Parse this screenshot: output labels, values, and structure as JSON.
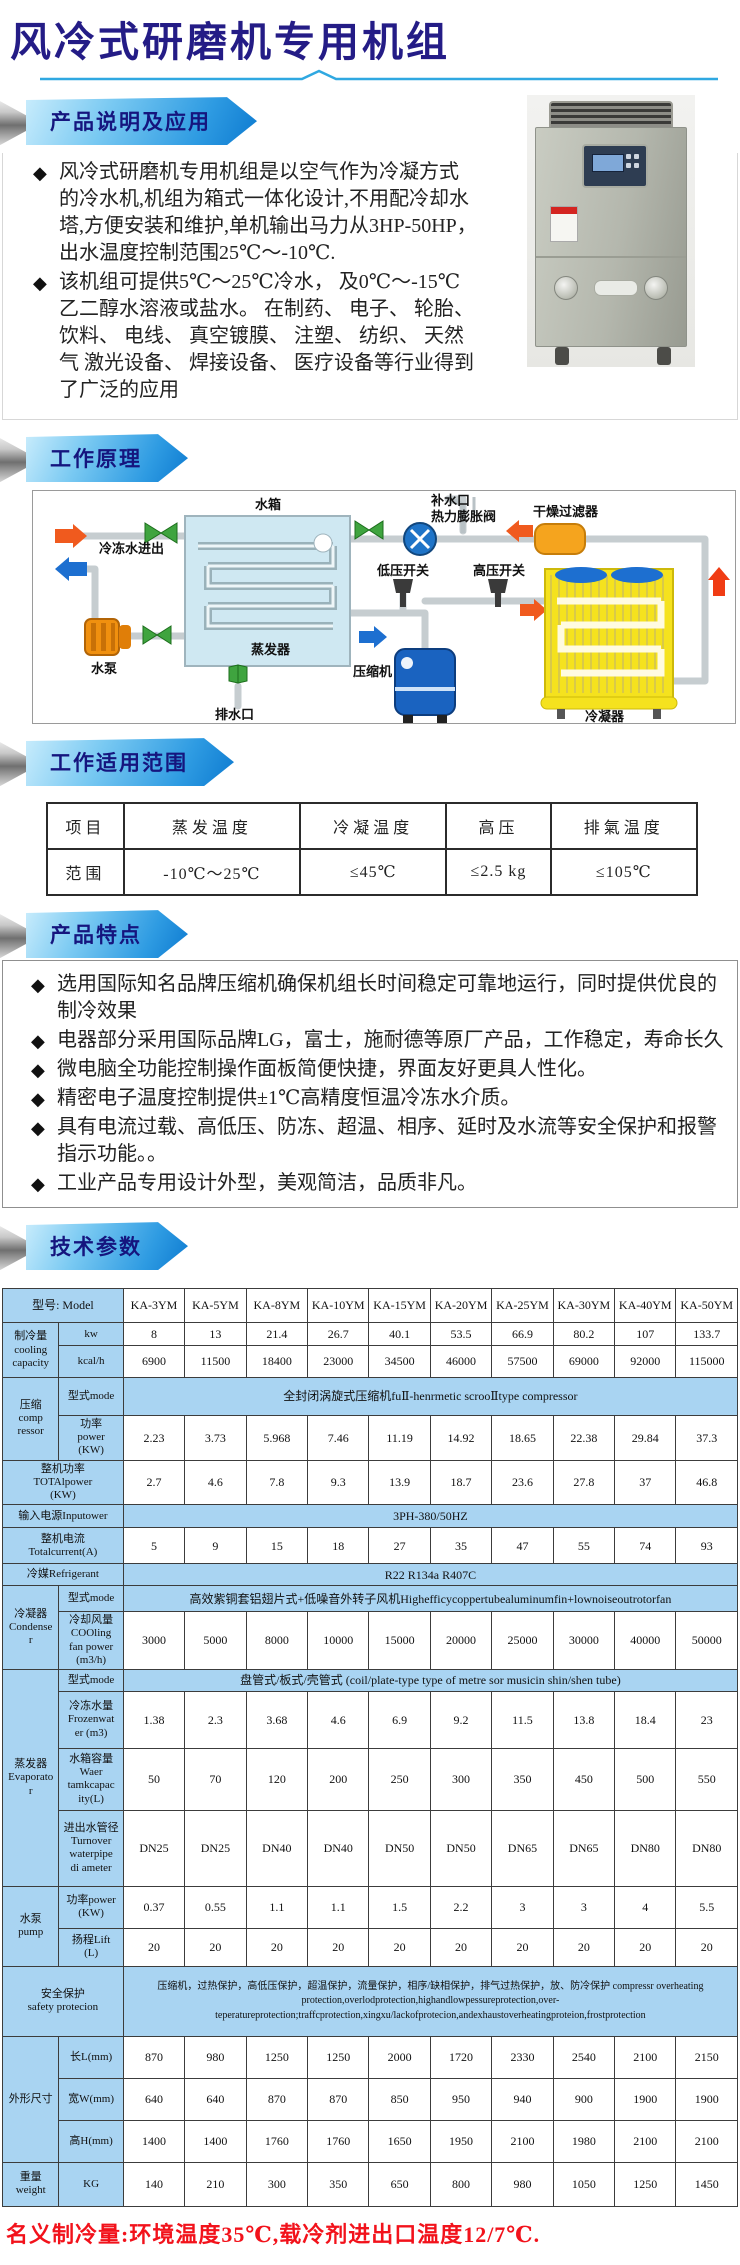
{
  "page": {
    "title": "风冷式研磨机专用机组",
    "footer_note": "名义制冷量:环境温度35℃,载冷剂进出口温度12/7℃."
  },
  "sections": {
    "desc": {
      "banner": "产品说明及应用",
      "bullets": [
        "风冷式研磨机专用机组是以空气作为冷凝方式的冷水机,机组为箱式一体化设计,不用配冷却水塔,方便安装和维护,单机输出马力从3HP-50HP， 出水温度控制范围25℃～-10℃.",
        "该机组可提供5℃～25℃冷水， 及0℃～-15℃乙二醇水溶液或盐水。 在制药、 电子、 轮胎、 饮料、 电线、 真空镀膜、 注塑、 纺织、 天然气 激光设备、 焊接设备、 医疗设备等行业得到了广泛的应用"
      ]
    },
    "principle": {
      "banner": "工作原理",
      "labels": {
        "water_refill": "补水口",
        "tank": "水箱",
        "expansion_valve": "热力膨胀阀",
        "dryer_filter": "干燥过滤器",
        "chilled_water": "冷冻水进出",
        "low_switch": "低压开关",
        "high_switch": "高压开关",
        "evaporator": "蒸发器",
        "compressor": "压缩机",
        "pump": "水泵",
        "drain": "排水口",
        "condenser": "冷凝器"
      }
    },
    "range": {
      "banner": "工作适用范围",
      "headers": [
        "项目",
        "蒸发温度",
        "冷凝温度",
        "高压",
        "排氣温度"
      ],
      "row": [
        "范围",
        "-10℃～25℃",
        "≤45℃",
        "≤2.5 kg",
        "≤105℃"
      ]
    },
    "features": {
      "banner": "产品特点",
      "bullets": [
        "选用国际知名品牌压缩机确保机组长时间稳定可靠地运行，同时提供优良的制冷效果",
        "电器部分采用国际品牌LG，富士，施耐德等原厂产品，工作稳定，寿命长久",
        "微电脑全功能控制操作面板简便快捷，界面友好更具人性化。",
        "精密电子温度控制提供±1℃高精度恒温冷冻水介质。",
        "具有电流过载、高低压、防冻、超温、相序、延时及水流等安全保护和报警指示功能。。",
        "工业产品专用设计外型，美观简洁，品质非凡。"
      ]
    },
    "specs": {
      "banner": "技术参数"
    }
  },
  "spec_table": {
    "model_label": "型号: Model",
    "models": [
      "KA-3YM",
      "KA-5YM",
      "KA-8YM",
      "KA-10YM",
      "KA-15YM",
      "KA-20YM",
      "KA-25YM",
      "KA-30YM",
      "KA-40YM",
      "KA-50YM"
    ],
    "rows": [
      {
        "group": "制冷量\ncooling\ncapacity",
        "rowspan": 2,
        "param": "kw",
        "values": [
          "8",
          "13",
          "21.4",
          "26.7",
          "40.1",
          "53.5",
          "66.9",
          "80.2",
          "107",
          "133.7"
        ]
      },
      {
        "param": "kcal/h",
        "values": [
          "6900",
          "11500",
          "18400",
          "23000",
          "34500",
          "46000",
          "57500",
          "69000",
          "92000",
          "115000"
        ]
      },
      {
        "group": "压缩\ncomp\nressor",
        "rowspan": 2,
        "param": "型式mode",
        "span": "全封闭涡旋式压缩机fuⅡ-henrmetic scrooⅡtype compressor"
      },
      {
        "param": "功率\npower\n(KW)",
        "values": [
          "2.23",
          "3.73",
          "5.968",
          "7.46",
          "11.19",
          "14.92",
          "18.65",
          "22.38",
          "29.84",
          "37.3"
        ]
      },
      {
        "label2": "整机功率\nTOTAlpower\n(KW)",
        "values": [
          "2.7",
          "4.6",
          "7.8",
          "9.3",
          "13.9",
          "18.7",
          "23.6",
          "27.8",
          "37",
          "46.8"
        ]
      },
      {
        "label2": "输入电源Inputower",
        "span": "3PH-380/50HZ"
      },
      {
        "label2": "整机电流\nTotalcurrent(A)",
        "values": [
          "5",
          "9",
          "15",
          "18",
          "27",
          "35",
          "47",
          "55",
          "74",
          "93"
        ]
      },
      {
        "label2": "冷媒Refrigerant",
        "span": "R22 R134a R407C"
      },
      {
        "group": "冷凝器\nCondense\nr",
        "rowspan": 2,
        "param": "型式mode",
        "span": "高效紫铜套铝翅片式+低噪音外转子风机Highefficycoppertubealuminumfin+lownoiseoutrotorfan"
      },
      {
        "param": "冷却风量\nCOOling\nfan power\n(m3/h)",
        "values": [
          "3000",
          "5000",
          "8000",
          "10000",
          "15000",
          "20000",
          "25000",
          "30000",
          "40000",
          "50000"
        ]
      },
      {
        "group": "蒸发器\nEvaporato\nr",
        "rowspan": 4,
        "param": "型式mode",
        "span": "盘管式/板式/壳管式 (coil/plate-type type of metre sor musicin shin/shen tube)"
      },
      {
        "param": "冷冻水量\nFrozenwat\ner (m3)",
        "values": [
          "1.38",
          "2.3",
          "3.68",
          "4.6",
          "6.9",
          "9.2",
          "11.5",
          "13.8",
          "18.4",
          "23"
        ]
      },
      {
        "param": "水箱容量\nWaer\ntamkcapac\nity(L)",
        "values": [
          "50",
          "70",
          "120",
          "200",
          "250",
          "300",
          "350",
          "450",
          "500",
          "550"
        ]
      },
      {
        "param": "进出水管径\nTurnover\nwaterpipe\ndi ameter",
        "values": [
          "DN25",
          "DN25",
          "DN40",
          "DN40",
          "DN50",
          "DN50",
          "DN65",
          "DN65",
          "DN80",
          "DN80"
        ]
      },
      {
        "group": "水泵\npump",
        "rowspan": 2,
        "param": "功率power\n(KW)",
        "values": [
          "0.37",
          "0.55",
          "1.1",
          "1.1",
          "1.5",
          "2.2",
          "3",
          "3",
          "4",
          "5.5"
        ]
      },
      {
        "param": "扬程Lift\n(L)",
        "values": [
          "20",
          "20",
          "20",
          "20",
          "20",
          "20",
          "20",
          "20",
          "20",
          "20"
        ]
      },
      {
        "label2": "安全保护\nsafety protecion",
        "span": "压缩机，过热保护，高低压保护，超温保护，流量保护，相序/缺相保护，排气过热保护，放、防冷保护 compressr overheating protection,overlodprotection,highandlowpessureprotection,over-teperatureprotection;traffcprotection,xingxu/lackofprotecion,andexhaustoverheatingproteion,frostprotection",
        "safety": true
      },
      {
        "group": "外形尺寸",
        "rowspan": 3,
        "param": "长L(mm)",
        "values": [
          "870",
          "980",
          "1250",
          "1250",
          "2000",
          "1720",
          "2330",
          "2540",
          "2100",
          "2150"
        ]
      },
      {
        "param": "宽W(mm)",
        "values": [
          "640",
          "640",
          "870",
          "870",
          "850",
          "950",
          "940",
          "900",
          "1900",
          "1900"
        ]
      },
      {
        "param": "高H(mm)",
        "values": [
          "1400",
          "1400",
          "1760",
          "1760",
          "1650",
          "1950",
          "2100",
          "1980",
          "2100",
          "2100"
        ]
      },
      {
        "group": "重量\nweight",
        "rowspan": 1,
        "param": "KG",
        "values": [
          "140",
          "210",
          "300",
          "350",
          "650",
          "800",
          "980",
          "1050",
          "1250",
          "1450"
        ]
      }
    ]
  }
}
